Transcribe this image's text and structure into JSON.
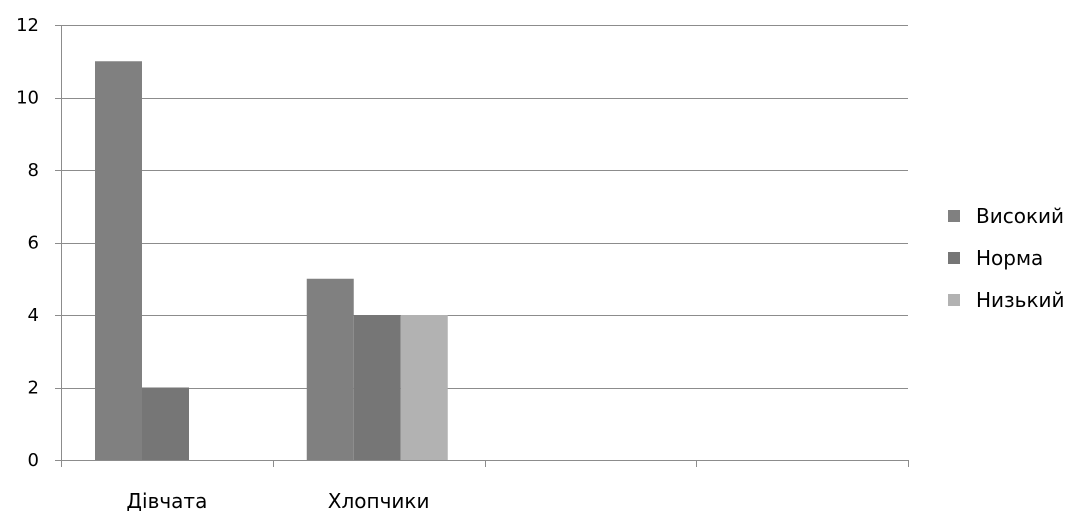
{
  "chart_data": {
    "type": "bar",
    "categories": [
      "Дівчата",
      "Хлопчики",
      "",
      ""
    ],
    "series": [
      {
        "name": "Високий",
        "values": [
          11,
          5,
          null,
          null
        ],
        "color": "#808080"
      },
      {
        "name": "Норма",
        "values": [
          2,
          4,
          null,
          null
        ],
        "color": "#767676"
      },
      {
        "name": "Низький",
        "values": [
          null,
          4,
          null,
          null
        ],
        "color": "#b2b2b2"
      }
    ],
    "ylim": [
      0,
      12
    ],
    "yticks": [
      0,
      2,
      4,
      6,
      8,
      10,
      12
    ],
    "title": "",
    "xlabel": "",
    "ylabel": "",
    "grid": true,
    "legend_position": "right",
    "gridline_color": "#8c8c8c",
    "axis_color": "#8c8c8c"
  }
}
